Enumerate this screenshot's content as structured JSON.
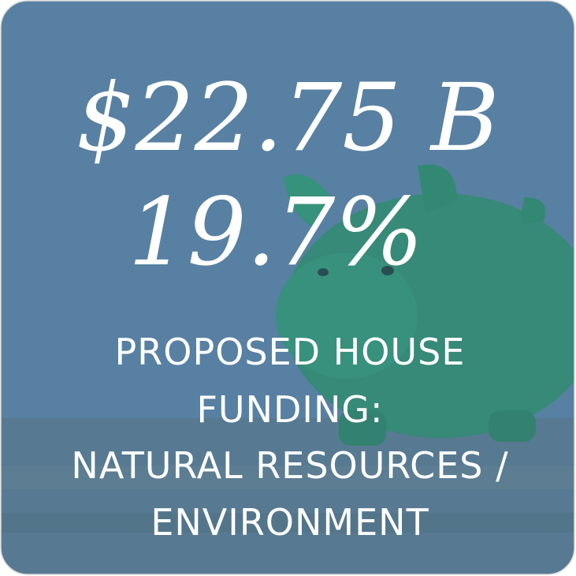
{
  "tile": {
    "amount": "$22.75 B",
    "percent": "19.7%",
    "caption_lines": [
      "PROPOSED HOUSE",
      "FUNDING:",
      "NATURAL RESOURCES /",
      "ENVIRONMENT"
    ]
  }
}
